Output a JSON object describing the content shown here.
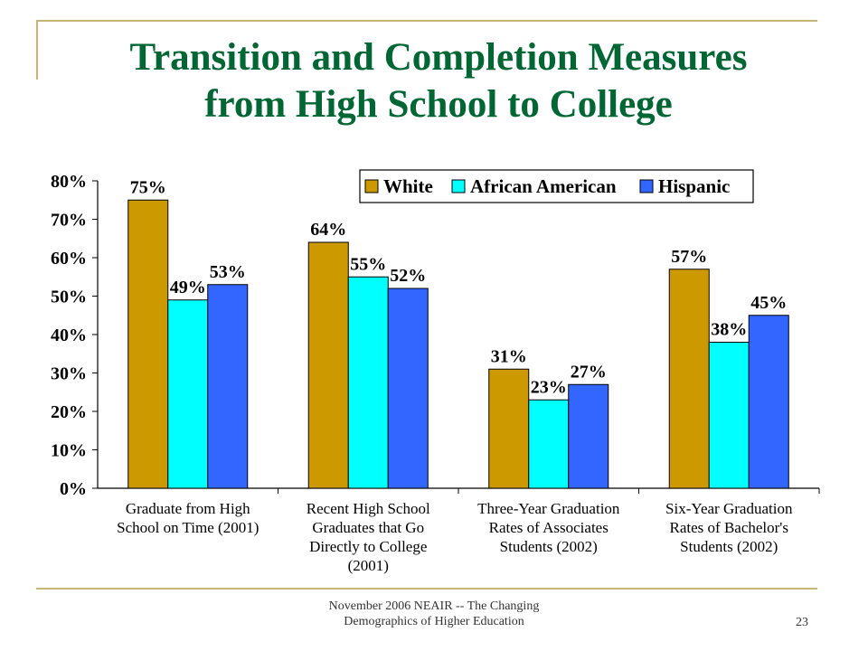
{
  "slide": {
    "title_line1": "Transition and Completion Measures",
    "title_line2": "from High School to College",
    "footer_line1": "November 2006 NEAIR -- The Changing",
    "footer_line2": "Demographics of Higher Education",
    "page_number": "23"
  },
  "colors": {
    "title": "#006633",
    "rule": "#c8b473"
  },
  "chart_data": {
    "type": "bar",
    "categories": [
      [
        "Graduate from High",
        "School on Time (2001)"
      ],
      [
        "Recent High School",
        "Graduates that Go",
        "Directly to College",
        "(2001)"
      ],
      [
        "Three-Year Graduation",
        "Rates of Associates",
        "Students (2002)"
      ],
      [
        "Six-Year Graduation",
        "Rates of Bachelor's",
        "Students (2002)"
      ]
    ],
    "series": [
      {
        "name": "White",
        "color": "#cc9900",
        "values": [
          75,
          64,
          31,
          57
        ],
        "labels": [
          "75%",
          "64%",
          "31%",
          "57%"
        ]
      },
      {
        "name": "African American",
        "color": "#00ffff",
        "values": [
          49,
          55,
          23,
          38
        ],
        "labels": [
          "49%",
          "55%",
          "23%",
          "38%"
        ]
      },
      {
        "name": "Hispanic",
        "color": "#3366ff",
        "values": [
          53,
          52,
          27,
          45
        ],
        "labels": [
          "53%",
          "52%",
          "27%",
          "45%"
        ]
      }
    ],
    "yticks": [
      "0%",
      "10%",
      "20%",
      "30%",
      "40%",
      "50%",
      "60%",
      "70%",
      "80%"
    ],
    "ylim": [
      0,
      80
    ],
    "grid": false,
    "legend": "top-right"
  }
}
